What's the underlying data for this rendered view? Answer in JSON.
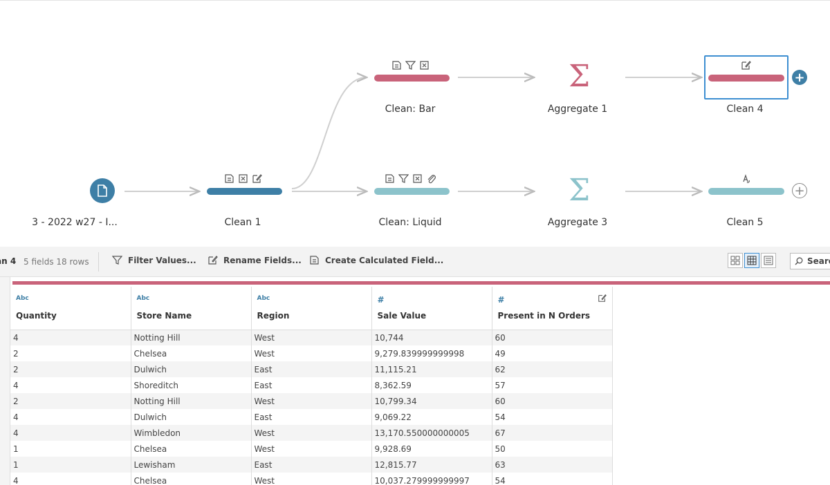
{
  "flow": {
    "nodes": [
      {
        "label": "3 - 2022 w27 - I..."
      },
      {
        "label": "Clean 1"
      },
      {
        "label": "Clean: Bar"
      },
      {
        "label": "Clean: Liquid"
      },
      {
        "label": "Aggregate 1"
      },
      {
        "label": "Aggregate 3"
      },
      {
        "label": "Clean 4"
      },
      {
        "label": "Clean 5"
      }
    ],
    "sigma_glyph": "Σ",
    "plus_glyph": "+",
    "colors": {
      "red": "#c9637a",
      "blue": "#3e7fa6",
      "teal": "#8cc3cb",
      "selection": "#3d8ed1"
    }
  },
  "toolbar": {
    "step_name": "an 4",
    "meta": "5 fields  18 rows",
    "filter_label": "Filter Values...",
    "rename_label": "Rename Fields...",
    "calc_label": "Create Calculated Field...",
    "search_label": "Searc"
  },
  "table": {
    "columns": [
      {
        "type": "Abc",
        "name": "Quantity"
      },
      {
        "type": "Abc",
        "name": "Store Name"
      },
      {
        "type": "Abc",
        "name": "Region"
      },
      {
        "type": "#",
        "name": "Sale Value"
      },
      {
        "type": "#",
        "name": "Present in N Orders"
      }
    ],
    "rows": [
      [
        "4",
        "Notting Hill",
        "West",
        "10,744",
        "60"
      ],
      [
        "2",
        "Chelsea",
        "West",
        "9,279.839999999998",
        "49"
      ],
      [
        "2",
        "Dulwich",
        "East",
        "11,115.21",
        "62"
      ],
      [
        "4",
        "Shoreditch",
        "East",
        "8,362.59",
        "57"
      ],
      [
        "2",
        "Notting Hill",
        "West",
        "10,799.34",
        "60"
      ],
      [
        "4",
        "Dulwich",
        "East",
        "9,069.22",
        "54"
      ],
      [
        "4",
        "Wimbledon",
        "West",
        "13,170.550000000005",
        "67"
      ],
      [
        "1",
        "Chelsea",
        "West",
        "9,928.69",
        "50"
      ],
      [
        "1",
        "Lewisham",
        "East",
        "12,815.77",
        "63"
      ],
      [
        "4",
        "Chelsea",
        "West",
        "10,037.279999999997",
        "54"
      ]
    ]
  }
}
